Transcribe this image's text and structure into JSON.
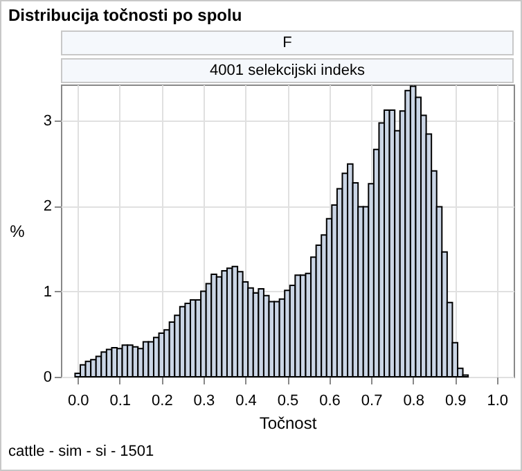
{
  "chart_data": {
    "type": "histogram",
    "title": "Distribucija točnosti po spolu",
    "subtitle": "F",
    "annotations": [
      "4001 selekcijski indeks",
      "cattle - sim - si - 1501"
    ],
    "xlabel": "Točnost",
    "ylabel": "%",
    "bins": [
      -0.00625,
      0.00625,
      0.01875,
      0.03125,
      0.04375,
      0.05625,
      0.06875,
      0.08125,
      0.09375,
      0.10625,
      0.11875,
      0.13125,
      0.14375,
      0.15625,
      0.16875,
      0.18125,
      0.19375,
      0.20625,
      0.21875,
      0.23125,
      0.24375,
      0.25625,
      0.26875,
      0.28125,
      0.29375,
      0.30625,
      0.31875,
      0.33125,
      0.34375,
      0.35625,
      0.36875,
      0.38125,
      0.39375,
      0.40625,
      0.41875,
      0.43125,
      0.44375,
      0.45625,
      0.46875,
      0.48125,
      0.49375,
      0.50625,
      0.51875,
      0.53125,
      0.54375,
      0.55625,
      0.56875,
      0.58125,
      0.59375,
      0.60625,
      0.61875,
      0.63125,
      0.64375,
      0.65625,
      0.66875,
      0.68125,
      0.69375,
      0.70625,
      0.71875,
      0.73125,
      0.74375,
      0.75625,
      0.76875,
      0.78125,
      0.79375,
      0.80625,
      0.81875,
      0.83125,
      0.84375,
      0.85625,
      0.86875,
      0.88125,
      0.89375,
      0.90625,
      0.91875,
      0.93125
    ],
    "values": [
      0.04,
      0.14,
      0.18,
      0.2,
      0.24,
      0.29,
      0.32,
      0.34,
      0.33,
      0.37,
      0.37,
      0.35,
      0.33,
      0.41,
      0.41,
      0.46,
      0.51,
      0.55,
      0.64,
      0.72,
      0.82,
      0.86,
      0.9,
      0.9,
      1.0,
      1.09,
      1.2,
      1.17,
      1.24,
      1.27,
      1.29,
      1.23,
      1.11,
      1.04,
      0.98,
      1.03,
      0.95,
      0.88,
      0.88,
      0.91,
      1.01,
      1.07,
      1.19,
      1.19,
      1.21,
      1.4,
      1.54,
      1.66,
      1.85,
      2.01,
      2.2,
      2.38,
      2.49,
      2.27,
      1.99,
      1.99,
      2.26,
      2.66,
      2.97,
      3.12,
      3.12,
      2.88,
      3.11,
      3.35,
      3.4,
      3.27,
      3.06,
      2.84,
      2.41,
      1.99,
      1.46,
      0.87,
      0.4,
      0.1,
      0.02
    ],
    "color": "#cad5e5",
    "xlim": [
      -0.04,
      1.04
    ],
    "ylim": [
      0,
      3.42
    ],
    "xticks": [
      {
        "value": 0,
        "label": "0.0"
      },
      0.1,
      0.2,
      0.3,
      0.4,
      0.5,
      0.6,
      0.7,
      0.8,
      0.9,
      {
        "value": 1,
        "label": "1.0"
      }
    ],
    "yticks": [
      0,
      1,
      2,
      3
    ],
    "grid": true
  }
}
